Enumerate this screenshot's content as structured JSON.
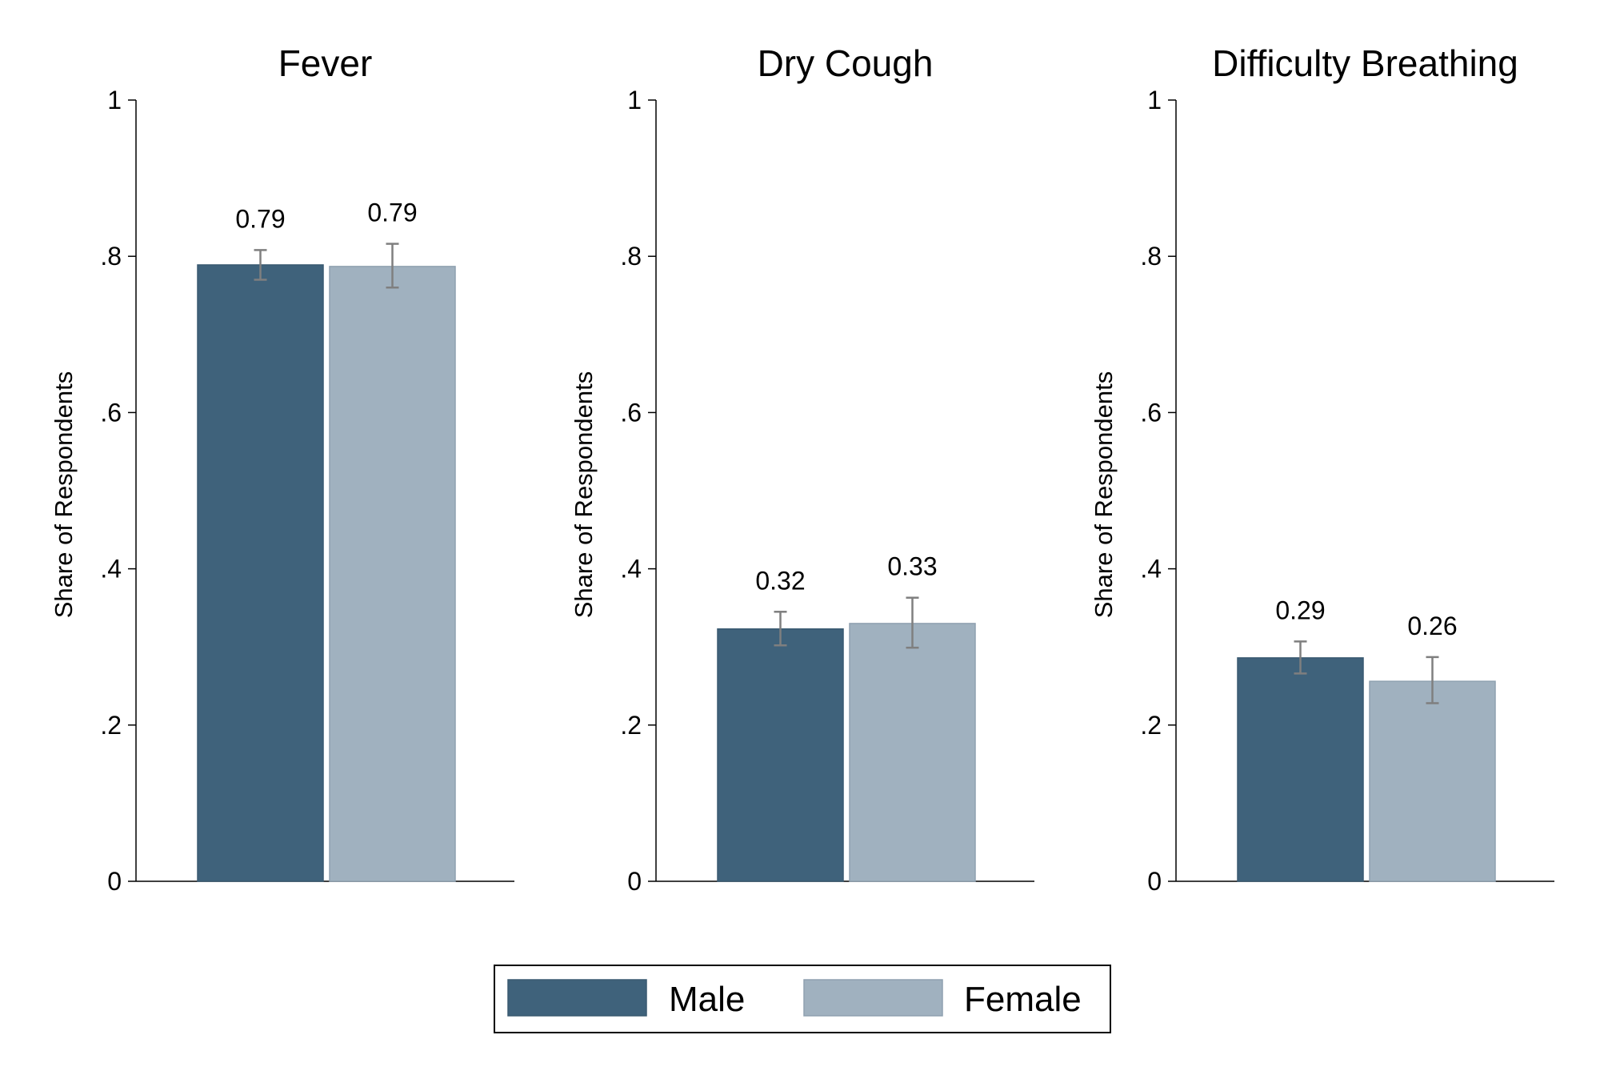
{
  "chart_data": {
    "type": "bar",
    "ylabel": "Share of Respondents",
    "ylim": [
      0,
      1
    ],
    "yticks": [
      0,
      0.2,
      0.4,
      0.6,
      0.8,
      1
    ],
    "ytick_labels": [
      "0",
      ".2",
      ".4",
      ".6",
      ".8",
      "1"
    ],
    "legend": {
      "placement": "bottom-center",
      "entries": [
        {
          "name": "Male",
          "color": "#3f627b"
        },
        {
          "name": "Female",
          "color": "#a0b1bf"
        }
      ]
    },
    "panels": [
      {
        "title": "Fever",
        "series": [
          {
            "name": "Male",
            "value": 0.789,
            "ci": [
              0.77,
              0.808
            ],
            "label": "0.79"
          },
          {
            "name": "Female",
            "value": 0.787,
            "ci": [
              0.76,
              0.816
            ],
            "label": "0.79"
          }
        ]
      },
      {
        "title": "Dry Cough",
        "series": [
          {
            "name": "Male",
            "value": 0.323,
            "ci": [
              0.302,
              0.345
            ],
            "label": "0.32"
          },
          {
            "name": "Female",
            "value": 0.33,
            "ci": [
              0.299,
              0.363
            ],
            "label": "0.33"
          }
        ]
      },
      {
        "title": "Difficulty Breathing",
        "series": [
          {
            "name": "Male",
            "value": 0.286,
            "ci": [
              0.266,
              0.307
            ],
            "label": "0.29"
          },
          {
            "name": "Female",
            "value": 0.256,
            "ci": [
              0.228,
              0.287
            ],
            "label": "0.26"
          }
        ]
      }
    ]
  }
}
